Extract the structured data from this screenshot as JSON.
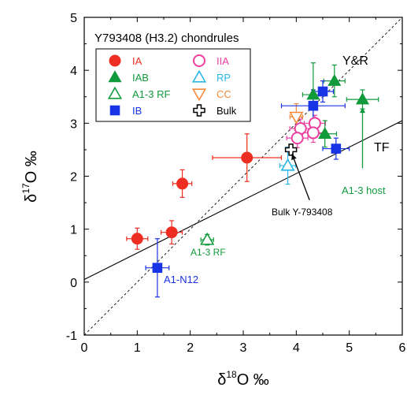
{
  "chart_data": {
    "type": "scatter",
    "title": "Y793408 (H3.2) chondrules",
    "xlabel_prefix": "δ",
    "xlabel_sup": "18",
    "xlabel_suffix": "O ‰",
    "ylabel_prefix": "δ",
    "ylabel_sup": "17",
    "ylabel_suffix": "O ‰",
    "xlim": [
      0,
      6
    ],
    "ylim": [
      -1,
      5
    ],
    "xticks": [
      "0",
      "1",
      "2",
      "3",
      "4",
      "5",
      "6"
    ],
    "yticks": [
      "-1",
      "0",
      "1",
      "2",
      "3",
      "4",
      "5"
    ],
    "grid": false,
    "legend_position": "top-left",
    "reference_lines": [
      {
        "label": "Y&R",
        "style": "dashed",
        "points": [
          [
            0,
            -1
          ],
          [
            6,
            5
          ]
        ]
      },
      {
        "label": "TF",
        "style": "solid",
        "points": [
          [
            0,
            0.05
          ],
          [
            6,
            3.05
          ]
        ]
      }
    ],
    "series": [
      {
        "name": "IA",
        "marker": "circle-filled",
        "color": "#ee2e22",
        "points": [
          {
            "x": 1.0,
            "y": 0.82,
            "xerr": 0.2,
            "yerr": 0.2
          },
          {
            "x": 1.65,
            "y": 0.94,
            "xerr": 0.2,
            "yerr": 0.22
          },
          {
            "x": 1.85,
            "y": 1.86,
            "xerr": 0.18,
            "yerr": 0.26
          },
          {
            "x": 3.07,
            "y": 2.35,
            "xerr": 0.65,
            "yerr": 0.45
          }
        ]
      },
      {
        "name": "IIA",
        "marker": "circle-open",
        "color": "#ec3fa0",
        "points": [
          {
            "x": 4.08,
            "y": 2.9,
            "xerr": 0.2,
            "yerr": 0.18
          },
          {
            "x": 4.35,
            "y": 3.0,
            "xerr": 0.2,
            "yerr": 0.15
          },
          {
            "x": 4.02,
            "y": 2.72,
            "xerr": 0.2,
            "yerr": 0.18
          },
          {
            "x": 4.32,
            "y": 2.82,
            "xerr": 0.2,
            "yerr": 0.18
          }
        ]
      },
      {
        "name": "IAB",
        "marker": "triangle-filled",
        "color": "#119a3c",
        "points": [
          {
            "x": 4.32,
            "y": 3.54,
            "xerr": 0.2,
            "yerr": 0.6
          },
          {
            "x": 4.72,
            "y": 3.8,
            "xerr": 0.2,
            "yerr": 0.3
          },
          {
            "x": 4.54,
            "y": 2.8,
            "xerr": 0.22,
            "yerr": 0.25
          },
          {
            "x": 5.25,
            "y": 3.45,
            "xerr": 0.3,
            "yerr": 0.18
          }
        ]
      },
      {
        "name": "RP",
        "marker": "triangle-open",
        "color": "#29b6e8",
        "points": [
          {
            "x": 3.84,
            "y": 2.2,
            "xerr": 0.15,
            "yerr": 0.35
          }
        ]
      },
      {
        "name": "A1-3 RF",
        "marker": "triangle-open",
        "color": "#119a3c",
        "points": [
          {
            "x": 2.32,
            "y": 0.8,
            "xerr": 0.12,
            "yerr": 0.1
          }
        ]
      },
      {
        "name": "CC",
        "marker": "triangle-down-open",
        "color": "#f58a3a",
        "points": [
          {
            "x": 4.0,
            "y": 3.12,
            "xerr": 0.12,
            "yerr": 0.25
          }
        ]
      },
      {
        "name": "IB",
        "marker": "square-filled",
        "color": "#1832e6",
        "points": [
          {
            "x": 1.38,
            "y": 0.27,
            "xerr": 0.22,
            "yerr": 0.55
          },
          {
            "x": 4.5,
            "y": 3.6,
            "xerr": 0.2,
            "yerr": 0.2
          },
          {
            "x": 4.32,
            "y": 3.33,
            "xerr": 0.6,
            "yerr": 0.3
          },
          {
            "x": 4.75,
            "y": 2.52,
            "xerr": 0.25,
            "yerr": 0.2
          }
        ]
      },
      {
        "name": "Bulk",
        "marker": "cross-open",
        "color": "#000000",
        "points": [
          {
            "x": 3.9,
            "y": 2.5,
            "xerr": 0,
            "yerr": 0
          }
        ]
      }
    ],
    "legend": [
      {
        "series": "IA",
        "label": "IA",
        "color": "#ee2e22",
        "marker": "circle-filled"
      },
      {
        "series": "IIA",
        "label": "IIA",
        "color": "#ec3fa0",
        "marker": "circle-open"
      },
      {
        "series": "IAB",
        "label": "IAB",
        "color": "#119a3c",
        "marker": "triangle-filled"
      },
      {
        "series": "RP",
        "label": "RP",
        "color": "#29b6e8",
        "marker": "triangle-open"
      },
      {
        "series": "A1-3 RF",
        "label": "A1-3 RF",
        "color": "#119a3c",
        "marker": "triangle-open"
      },
      {
        "series": "CC",
        "label": "CC",
        "color": "#f58a3a",
        "marker": "triangle-down-open"
      },
      {
        "series": "IB",
        "label": "IB",
        "color": "#1832e6",
        "marker": "square-filled"
      },
      {
        "series": "Bulk",
        "label": "Bulk",
        "color": "#000000",
        "marker": "cross-open"
      }
    ],
    "annotations": [
      {
        "text": "Y&R",
        "color": "#000000"
      },
      {
        "text": "TF",
        "color": "#000000"
      },
      {
        "text": "A1-3 host",
        "color": "#119a3c",
        "arrow_from": [
          5.25,
          2.15
        ],
        "arrow_to": [
          5.25,
          3.3
        ]
      },
      {
        "text": "Bulk Y-793408",
        "color": "#000000",
        "arrow_from": [
          4.25,
          1.55
        ],
        "arrow_to": [
          3.92,
          2.42
        ]
      },
      {
        "text": "A1-3 RF",
        "color": "#119a3c"
      },
      {
        "text": "A1-N12",
        "color": "#1832e6"
      }
    ]
  }
}
